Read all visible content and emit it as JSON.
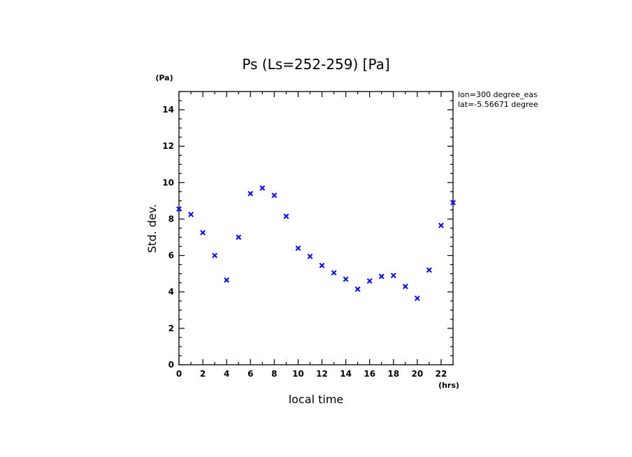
{
  "chart_data": {
    "type": "scatter",
    "title": "Ps (Ls=252-259) [Pa]",
    "xlabel": "local time",
    "ylabel": "Std. dev.",
    "x_unit": "(hrs)",
    "y_unit": "(Pa)",
    "xlim": [
      0,
      23
    ],
    "ylim": [
      0,
      15
    ],
    "x_major_ticks": [
      0,
      2,
      4,
      6,
      8,
      10,
      12,
      14,
      16,
      18,
      20,
      22
    ],
    "y_major_ticks": [
      0,
      2,
      4,
      6,
      8,
      10,
      12,
      14
    ],
    "marker": "x",
    "marker_color": "#0000ff",
    "grid": false,
    "annotations": [
      "lon=300 degree_eas",
      "lat=-5.56671 degree"
    ],
    "series": [
      {
        "x": [
          0,
          1,
          2,
          3,
          4,
          5,
          6,
          7,
          8,
          9,
          10,
          11,
          12,
          13,
          14,
          15,
          16,
          17,
          18,
          19,
          20,
          21,
          22,
          23
        ],
        "y": [
          8.55,
          8.25,
          7.25,
          6.0,
          4.65,
          7.0,
          9.4,
          9.7,
          9.3,
          8.15,
          6.4,
          5.95,
          5.45,
          5.05,
          4.7,
          4.15,
          4.6,
          4.85,
          4.9,
          4.3,
          3.65,
          5.2,
          7.65,
          8.9
        ]
      }
    ]
  }
}
